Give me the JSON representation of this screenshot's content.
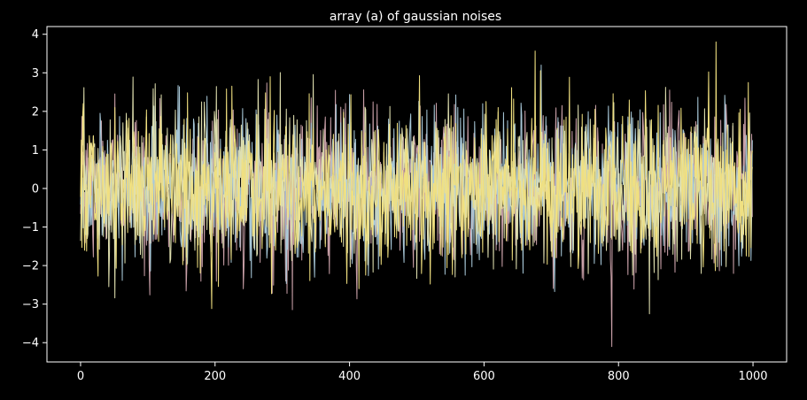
{
  "chart_data": {
    "type": "line",
    "title": "array (a) of gaussian noises",
    "xlabel": "",
    "ylabel": "",
    "xlim": [
      -50,
      1050
    ],
    "ylim": [
      -4.5,
      4.2
    ],
    "xticks": [
      0,
      200,
      400,
      600,
      800,
      1000
    ],
    "yticks": [
      4,
      3,
      2,
      1,
      0,
      -1,
      -2,
      -3,
      -4
    ],
    "xtick_labels": [
      "0",
      "200",
      "400",
      "600",
      "800",
      "1000"
    ],
    "ytick_labels": [
      "4",
      "3",
      "2",
      "1",
      "0",
      "−1",
      "−2",
      "−3",
      "−4"
    ],
    "grid": false,
    "legend": false,
    "background": "#000000",
    "axes_color": "#ffffff",
    "text_color": "#ffffff",
    "series_count": 4,
    "points_per_series": 1000,
    "distribution": "gaussian noise, mean 0, std dev 1",
    "x_range": [
      0,
      999
    ],
    "observed_extremes": {
      "max": 3.8,
      "max_at": 945,
      "min": -4.1,
      "min_at": 790
    },
    "series_colors": [
      "#c9a0a8",
      "#a8c8d8",
      "#e0e0b0",
      "#f0e080"
    ]
  }
}
